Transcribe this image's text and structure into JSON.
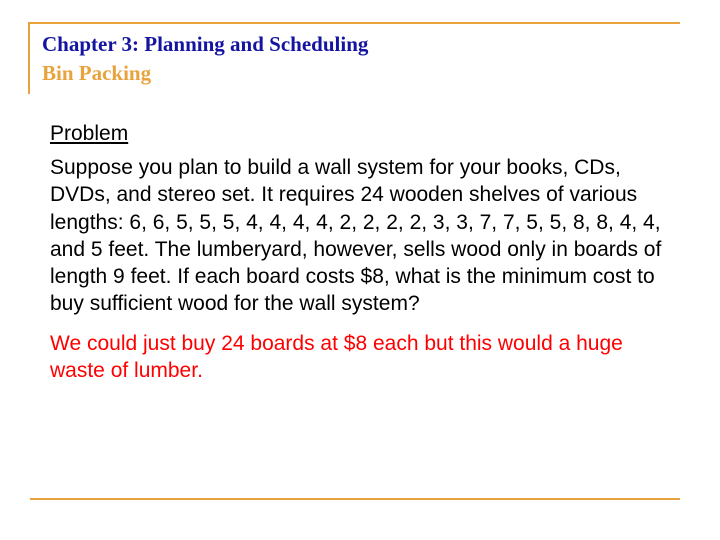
{
  "header": {
    "chapter_title": "Chapter 3:  Planning and Scheduling",
    "subtitle": "Bin Packing"
  },
  "content": {
    "problem_heading": "Problem",
    "problem_body": "Suppose you plan to build a wall system for your books, CDs, DVDs, and stereo set.  It requires 24 wooden shelves of various lengths: 6, 6, 5, 5, 5, 4, 4, 4, 4, 2, 2, 2, 2, 3, 3, 7, 7, 5, 5, 8, 8, 4, 4, and 5 feet.  The lumberyard, however, sells wood only in boards of length 9 feet.  If each board costs $8, what is the minimum cost to buy sufficient wood for the wall system?",
    "commentary": "We could just buy 24 boards at $8 each but this would a huge waste of lumber."
  },
  "colors": {
    "accent": "#e8a33d",
    "title": "#1414a0",
    "body": "#000000",
    "commentary": "#ff0000",
    "background": "#ffffff"
  },
  "typography": {
    "title_fontsize": 21,
    "body_fontsize": 21
  }
}
